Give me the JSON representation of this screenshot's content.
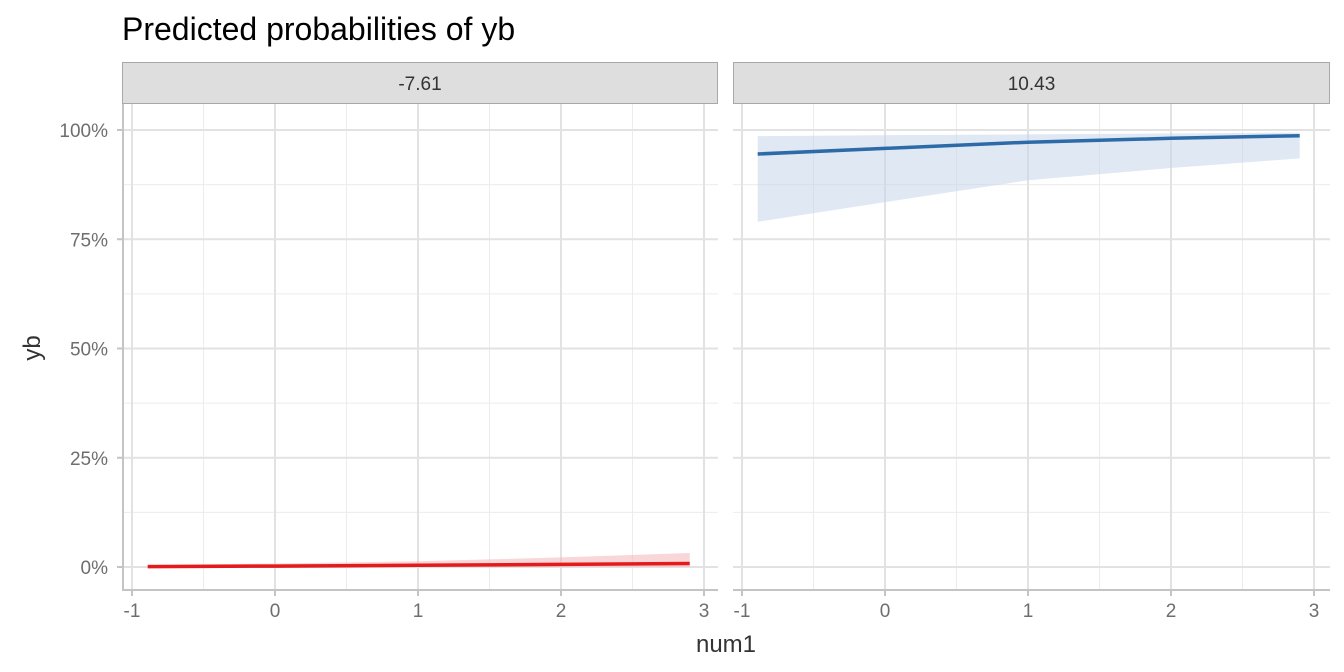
{
  "chart_data": {
    "type": "line",
    "title": "Predicted probabilities of yb",
    "xlabel": "num1",
    "ylabel": "yb",
    "xlim": [
      -1,
      3
    ],
    "ylim": [
      0,
      1
    ],
    "x_ticks": [
      -1,
      0,
      1,
      2,
      3
    ],
    "x_tick_labels": [
      "-1",
      "0",
      "1",
      "2",
      "3"
    ],
    "y_ticks": [
      0,
      0.25,
      0.5,
      0.75,
      1
    ],
    "y_tick_labels": [
      "0%",
      "25%",
      "50%",
      "75%",
      "100%"
    ],
    "grid": true,
    "legend": "none",
    "panels": [
      {
        "strip_label": "-7.61",
        "color": "#E41A1C",
        "fill": "#F4B5B6",
        "x": [
          -0.89,
          0.0,
          1.0,
          2.0,
          2.9
        ],
        "y": [
          0.001,
          0.002,
          0.004,
          0.006,
          0.008
        ],
        "lower": [
          0.0,
          0.0,
          0.0,
          0.0,
          0.0
        ],
        "upper": [
          0.005,
          0.008,
          0.013,
          0.022,
          0.032
        ]
      },
      {
        "strip_label": "10.43",
        "color": "#2C6BA8",
        "fill": "#C4D5EA",
        "x": [
          -0.89,
          0.0,
          1.0,
          2.0,
          2.9
        ],
        "y": [
          0.945,
          0.958,
          0.972,
          0.981,
          0.987
        ],
        "lower": [
          0.79,
          0.835,
          0.885,
          0.913,
          0.935
        ],
        "upper": [
          0.986,
          0.988,
          0.99,
          0.992,
          0.994
        ]
      }
    ]
  }
}
